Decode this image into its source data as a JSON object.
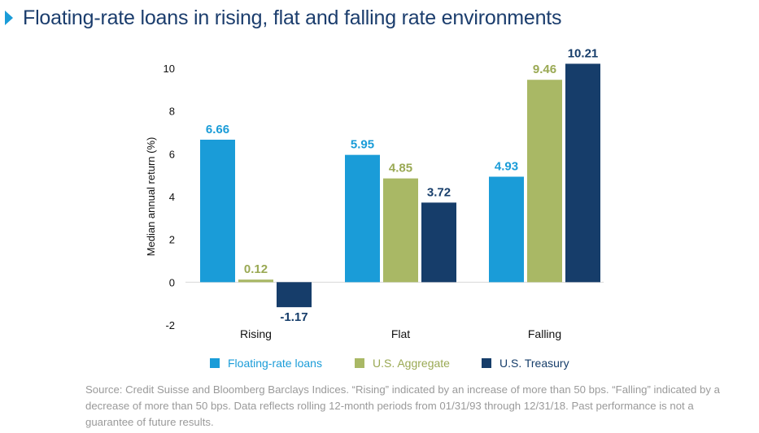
{
  "title": "Floating-rate loans in rising, flat and falling rate environments",
  "source_note": "Source: Credit Suisse and Bloomberg Barclays Indices. “Rising” indicated by an increase of more than 50 bps. “Falling” indicated by a decrease of more than 50 bps. Data reflects rolling 12-month periods from 01/31/93 through 12/31/18. Past performance is not a guarantee of future results.",
  "chart_data": {
    "type": "bar",
    "ylabel": "Median annual return (%)",
    "xlabel": "",
    "ylim": [
      -2,
      10
    ],
    "yticks": [
      -2,
      0,
      2,
      4,
      6,
      8,
      10
    ],
    "grid": false,
    "legend_position": "bottom",
    "categories": [
      "Rising",
      "Flat",
      "Falling"
    ],
    "series": [
      {
        "name": "Floating-rate loans",
        "color": "#1a9cd8",
        "label_color": "#1a9cd8",
        "values": [
          6.66,
          5.95,
          4.93
        ],
        "labels": [
          "6.66",
          "5.95",
          "4.93"
        ]
      },
      {
        "name": "U.S. Aggregate",
        "color": "#a9b865",
        "label_color": "#9aa954",
        "values": [
          0.12,
          4.85,
          9.46
        ],
        "labels": [
          "0.12",
          "4.85",
          "9.46"
        ]
      },
      {
        "name": "U.S. Treasury",
        "color": "#163d6a",
        "label_color": "#163d6a",
        "values": [
          -1.17,
          3.72,
          10.21
        ],
        "labels": [
          "-1.17",
          "3.72",
          "10.21"
        ]
      }
    ]
  }
}
